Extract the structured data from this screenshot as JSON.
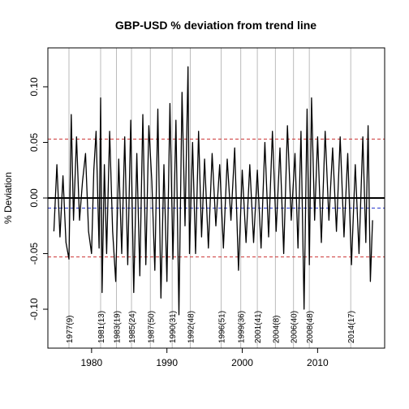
{
  "chart_data": {
    "type": "line",
    "title": "GBP-USD  % deviation from trend line",
    "xlabel": "",
    "ylabel": "% Deviation",
    "xlim": [
      1974.2,
      2018.9
    ],
    "ylim": [
      -0.135,
      0.135
    ],
    "x_ticks": [
      1980,
      1990,
      2000,
      2010
    ],
    "y_ticks": [
      -0.1,
      -0.05,
      0.0,
      0.05,
      0.1
    ],
    "y_tick_labels": [
      "-0.10",
      "-0.05",
      "0.00",
      "0.05",
      "0.10"
    ],
    "grid": false,
    "reference_lines": [
      {
        "y": 0.0,
        "color": "#000000",
        "style": "solid"
      },
      {
        "y": 0.053,
        "color": "#cc3333",
        "style": "dashed"
      },
      {
        "y": -0.053,
        "color": "#cc3333",
        "style": "dashed"
      },
      {
        "y": -0.009,
        "color": "#2233cc",
        "style": "dashed"
      }
    ],
    "events": [
      {
        "x": 1977.0,
        "label": "1977(9)"
      },
      {
        "x": 1981.2,
        "label": "1981(13)"
      },
      {
        "x": 1983.3,
        "label": "1983(19)"
      },
      {
        "x": 1985.3,
        "label": "1985(24)"
      },
      {
        "x": 1987.8,
        "label": "1987(50)"
      },
      {
        "x": 1990.7,
        "label": "1990(31)"
      },
      {
        "x": 1993.1,
        "label": "1992(48)"
      },
      {
        "x": 1997.2,
        "label": "1996(51)"
      },
      {
        "x": 1999.8,
        "label": "1999(36)"
      },
      {
        "x": 2002.0,
        "label": "2001(41)"
      },
      {
        "x": 2004.4,
        "label": "2004(8)"
      },
      {
        "x": 2006.8,
        "label": "2006(40)"
      },
      {
        "x": 2008.9,
        "label": "2008(48)"
      },
      {
        "x": 2014.4,
        "label": "2014(17)"
      }
    ],
    "series": [
      {
        "color": "#000000",
        "x": [
          1975.0,
          1975.4,
          1975.8,
          1976.2,
          1976.6,
          1977.0,
          1977.3,
          1977.6,
          1978.0,
          1978.4,
          1978.8,
          1979.2,
          1979.6,
          1980.0,
          1980.3,
          1980.6,
          1981.0,
          1981.2,
          1981.4,
          1981.7,
          1982.0,
          1982.4,
          1982.8,
          1983.2,
          1983.6,
          1984.0,
          1984.4,
          1984.8,
          1985.2,
          1985.6,
          1986.0,
          1986.4,
          1986.8,
          1987.2,
          1987.6,
          1988.0,
          1988.4,
          1988.8,
          1989.2,
          1989.6,
          1990.0,
          1990.4,
          1990.8,
          1991.2,
          1991.6,
          1992.0,
          1992.4,
          1992.8,
          1993.0,
          1993.4,
          1993.8,
          1994.2,
          1994.6,
          1995.0,
          1995.5,
          1996.0,
          1996.5,
          1997.0,
          1997.5,
          1998.0,
          1998.5,
          1999.0,
          1999.5,
          2000.0,
          2000.5,
          2001.0,
          2001.5,
          2002.0,
          2002.5,
          2003.0,
          2003.5,
          2004.0,
          2004.5,
          2005.0,
          2005.5,
          2006.0,
          2006.5,
          2007.0,
          2007.4,
          2007.8,
          2008.2,
          2008.6,
          2008.9,
          2009.2,
          2009.6,
          2010.0,
          2010.5,
          2011.0,
          2011.5,
          2012.0,
          2012.5,
          2013.0,
          2013.5,
          2014.0,
          2014.5,
          2015.0,
          2015.5,
          2016.0,
          2016.4,
          2016.7,
          2017.0,
          2017.3
        ],
        "values": [
          -0.03,
          0.03,
          -0.035,
          0.02,
          -0.04,
          -0.055,
          0.075,
          -0.02,
          0.055,
          -0.02,
          0.015,
          0.04,
          -0.03,
          -0.05,
          0.025,
          0.06,
          -0.045,
          0.09,
          -0.085,
          0.03,
          -0.05,
          0.06,
          -0.03,
          -0.075,
          0.035,
          -0.05,
          0.055,
          -0.06,
          0.07,
          -0.085,
          0.04,
          -0.07,
          0.075,
          -0.06,
          0.065,
          0.015,
          -0.065,
          0.08,
          -0.09,
          0.03,
          -0.075,
          0.085,
          -0.055,
          0.07,
          -0.105,
          0.095,
          -0.025,
          0.118,
          -0.05,
          0.05,
          -0.05,
          0.06,
          -0.035,
          0.035,
          -0.045,
          0.04,
          -0.025,
          0.03,
          -0.045,
          0.035,
          -0.02,
          0.045,
          -0.065,
          0.025,
          -0.04,
          0.03,
          -0.04,
          0.025,
          -0.045,
          0.05,
          -0.035,
          0.06,
          -0.03,
          0.045,
          -0.05,
          0.065,
          -0.02,
          0.04,
          -0.045,
          0.06,
          -0.1,
          0.08,
          -0.06,
          0.09,
          -0.02,
          0.055,
          -0.04,
          0.06,
          -0.02,
          0.045,
          -0.03,
          0.055,
          -0.035,
          0.04,
          -0.06,
          0.03,
          -0.05,
          0.055,
          -0.04,
          0.065,
          -0.075,
          -0.02
        ]
      }
    ]
  }
}
